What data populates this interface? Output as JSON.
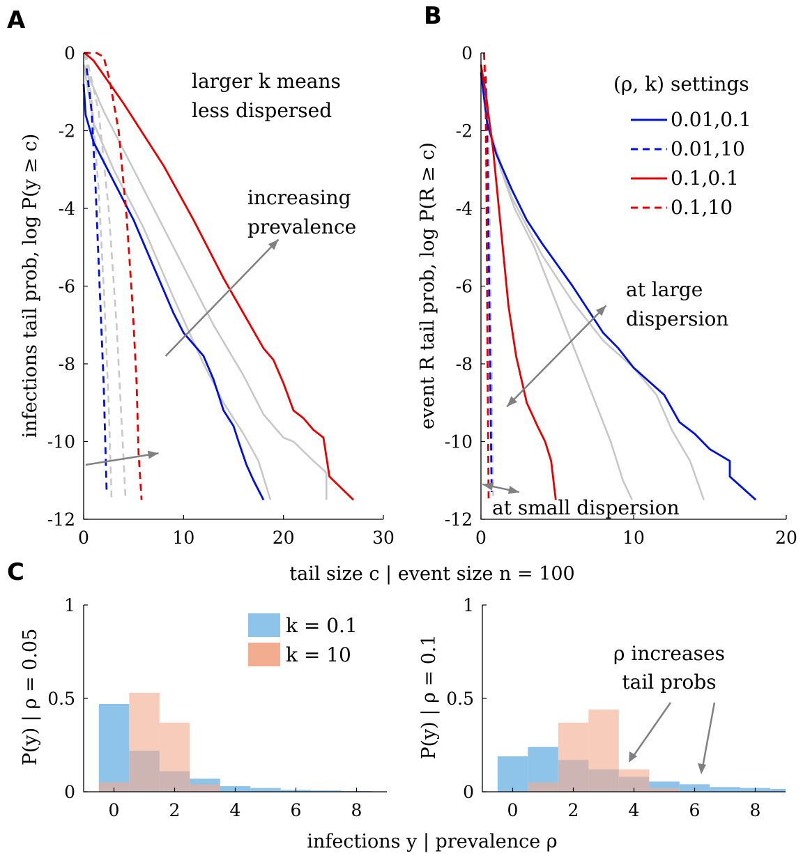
{
  "panels": {
    "A": "A",
    "B": "B",
    "C": "C"
  },
  "shared_xlabel_AB": "tail size c | event size n = 100",
  "shared_xlabel_C": "infections y |  prevalence ρ",
  "chart_data": [
    {
      "id": "A",
      "type": "line",
      "ylabel": "infections tail prob, log P(y ≥ c)",
      "xlim": [
        0,
        30
      ],
      "ylim": [
        -12,
        0
      ],
      "xticks": [
        0,
        10,
        20,
        30
      ],
      "yticks": [
        0,
        -2,
        -4,
        -6,
        -8,
        -10,
        -12
      ],
      "annotations": [
        "larger k means",
        "less dispersed",
        "increasing",
        "prevalence"
      ],
      "series": [
        {
          "style": "gray-dashed",
          "color": "#c8c8c8",
          "dash": true,
          "points": [
            [
              0.1,
              0
            ],
            [
              0.8,
              -1.2
            ],
            [
              1.5,
              -3.5
            ],
            [
              2.1,
              -6.5
            ],
            [
              2.5,
              -9
            ],
            [
              2.8,
              -11.5
            ]
          ]
        },
        {
          "style": "gray-dashed",
          "color": "#c8c8c8",
          "dash": true,
          "points": [
            [
              0.2,
              0
            ],
            [
              1.5,
              -1.5
            ],
            [
              2.5,
              -4
            ],
            [
              3.3,
              -7
            ],
            [
              3.8,
              -9.5
            ],
            [
              4.2,
              -11.5
            ]
          ]
        },
        {
          "style": "gray-solid",
          "color": "#c8c8c8",
          "dash": false,
          "points": [
            [
              0,
              -0.3
            ],
            [
              1,
              -1.8
            ],
            [
              3,
              -3
            ],
            [
              6,
              -4.5
            ],
            [
              9,
              -6.3
            ],
            [
              12,
              -8
            ],
            [
              14,
              -9
            ],
            [
              16,
              -9.8
            ],
            [
              17.5,
              -10.5
            ],
            [
              18.7,
              -11.5
            ]
          ]
        },
        {
          "style": "gray-solid",
          "color": "#c8c8c8",
          "dash": false,
          "points": [
            [
              0,
              -0.3
            ],
            [
              2,
              -1.5
            ],
            [
              5,
              -3
            ],
            [
              9,
              -5
            ],
            [
              13,
              -7
            ],
            [
              16,
              -8.3
            ],
            [
              18,
              -9.3
            ],
            [
              20,
              -9.9
            ],
            [
              21,
              -10
            ],
            [
              23,
              -10.5
            ],
            [
              24.3,
              -10.8
            ],
            [
              24.3,
              -11.5
            ]
          ]
        },
        {
          "name": "0.01,0.1",
          "color": "#0010e0",
          "dash": false,
          "points": [
            [
              0,
              -0.8
            ],
            [
              0.2,
              -1.6
            ],
            [
              1,
              -2.3
            ],
            [
              2,
              -2.8
            ],
            [
              3,
              -3.3
            ],
            [
              5,
              -4.3
            ],
            [
              7,
              -5.5
            ],
            [
              9,
              -6.7
            ],
            [
              10,
              -7.2
            ],
            [
              11,
              -7.5
            ],
            [
              12,
              -7.8
            ],
            [
              13,
              -8.4
            ],
            [
              14,
              -9.2
            ],
            [
              15,
              -9.6
            ],
            [
              15.5,
              -10
            ],
            [
              16.3,
              -10.6
            ],
            [
              17,
              -11
            ],
            [
              18,
              -11.5
            ]
          ]
        },
        {
          "name": "0.01,10",
          "color": "#0010e0",
          "dash": true,
          "points": [
            [
              0.3,
              -0.4
            ],
            [
              0.8,
              -1.5
            ],
            [
              1.2,
              -3.5
            ],
            [
              1.6,
              -6
            ],
            [
              2,
              -8.5
            ],
            [
              2.3,
              -11.3
            ]
          ]
        },
        {
          "name": "0.1,0.1",
          "color": "#e80000",
          "dash": false,
          "points": [
            [
              0.1,
              0
            ],
            [
              1,
              -0.2
            ],
            [
              4,
              -1.3
            ],
            [
              8,
              -2.9
            ],
            [
              11,
              -4.3
            ],
            [
              14,
              -5.8
            ],
            [
              16,
              -6.7
            ],
            [
              18,
              -7.6
            ],
            [
              19,
              -7.9
            ],
            [
              20,
              -8.5
            ],
            [
              21,
              -9.2
            ],
            [
              22,
              -9.4
            ],
            [
              23,
              -9.7
            ],
            [
              24,
              -9.9
            ],
            [
              24.6,
              -10.9
            ],
            [
              27,
              -11.5
            ]
          ]
        },
        {
          "name": "0.1,10",
          "color": "#e80000",
          "dash": true,
          "points": [
            [
              0,
              0
            ],
            [
              1.3,
              0
            ],
            [
              2,
              -0.1
            ],
            [
              2.6,
              -0.7
            ],
            [
              3.5,
              -2
            ],
            [
              4.3,
              -4.2
            ],
            [
              4.9,
              -6.5
            ],
            [
              5.3,
              -8.5
            ],
            [
              5.5,
              -10.3
            ],
            [
              5.8,
              -11.5
            ]
          ]
        }
      ],
      "arrows": [
        {
          "from": [
            8.2,
            -7.8
          ],
          "to": [
            19.5,
            -4.8
          ]
        },
        {
          "from": [
            0.2,
            -10.6
          ],
          "to": [
            7.5,
            -10.3
          ]
        }
      ]
    },
    {
      "id": "B",
      "type": "line",
      "ylabel": "event R tail prob, log P(R ≥ c)",
      "xlim": [
        0,
        20
      ],
      "ylim": [
        -12,
        0
      ],
      "xticks": [
        0,
        10,
        20
      ],
      "yticks": [
        0,
        -2,
        -4,
        -6,
        -8,
        -10,
        -12
      ],
      "legend_title": "(ρ, k) settings",
      "legend_position": "top-right",
      "annotations": [
        "at large",
        "dispersion",
        "at small dispersion"
      ],
      "series": [
        {
          "style": "gray-solid",
          "color": "#c8c8c8",
          "dash": false,
          "points": [
            [
              0,
              -0.6
            ],
            [
              0.5,
              -1.8
            ],
            [
              1.3,
              -3
            ],
            [
              2.2,
              -4
            ],
            [
              3.5,
              -5
            ],
            [
              5,
              -6.5
            ],
            [
              6.5,
              -8
            ],
            [
              7.5,
              -9
            ],
            [
              8.5,
              -10
            ],
            [
              9.3,
              -11
            ],
            [
              9.9,
              -11.5
            ]
          ]
        },
        {
          "style": "gray-solid",
          "color": "#c8c8c8",
          "dash": false,
          "points": [
            [
              0,
              -0.5
            ],
            [
              0.6,
              -2
            ],
            [
              2,
              -3.7
            ],
            [
              4,
              -5.2
            ],
            [
              6,
              -6.4
            ],
            [
              8,
              -7.4
            ],
            [
              10,
              -8.1
            ],
            [
              11.5,
              -8.8
            ],
            [
              12.5,
              -9.7
            ],
            [
              13.7,
              -10.5
            ],
            [
              14.6,
              -11.5
            ]
          ]
        },
        {
          "style": "gray-dashed",
          "color": "#c8c8c8",
          "dash": true,
          "points": [
            [
              0.3,
              -0.3
            ],
            [
              0.5,
              -2
            ],
            [
              0.6,
              -5
            ],
            [
              0.7,
              -8
            ],
            [
              0.8,
              -11.4
            ]
          ]
        },
        {
          "name": "0.01,0.1",
          "color": "#0010e0",
          "dash": false,
          "points": [
            [
              0,
              -0.5
            ],
            [
              0.4,
              -1.8
            ],
            [
              1,
              -2.6
            ],
            [
              2,
              -3.5
            ],
            [
              3,
              -4.3
            ],
            [
              4,
              -4.9
            ],
            [
              6,
              -6
            ],
            [
              8,
              -7.2
            ],
            [
              9,
              -7.6
            ],
            [
              10,
              -8.1
            ],
            [
              12,
              -8.8
            ],
            [
              13,
              -9.5
            ],
            [
              14,
              -9.8
            ],
            [
              15,
              -10.2
            ],
            [
              16.3,
              -10.5
            ],
            [
              16.3,
              -10.9
            ],
            [
              18,
              -11.5
            ]
          ]
        },
        {
          "name": "0.01,10",
          "color": "#0010e0",
          "dash": true,
          "points": [
            [
              0.3,
              -0.6
            ],
            [
              0.4,
              -2
            ],
            [
              0.5,
              -5
            ],
            [
              0.6,
              -8
            ],
            [
              0.7,
              -11.3
            ]
          ]
        },
        {
          "name": "0.1,0.1",
          "color": "#e80000",
          "dash": false,
          "points": [
            [
              0,
              -0.3
            ],
            [
              0.3,
              -1
            ],
            [
              0.8,
              -2.5
            ],
            [
              1.3,
              -4.5
            ],
            [
              1.8,
              -6.5
            ],
            [
              2.3,
              -7.8
            ],
            [
              3,
              -9
            ],
            [
              3.7,
              -9.6
            ],
            [
              4.2,
              -10
            ],
            [
              4.6,
              -10.5
            ],
            [
              4.9,
              -11.5
            ]
          ]
        },
        {
          "name": "0.1,10",
          "color": "#e80000",
          "dash": true,
          "points": [
            [
              0.2,
              0
            ],
            [
              0.3,
              -1
            ],
            [
              0.35,
              -3
            ],
            [
              0.4,
              -6
            ],
            [
              0.45,
              -9
            ],
            [
              0.5,
              -11.5
            ]
          ]
        }
      ],
      "arrows": [
        {
          "from": [
            5.6,
            -7.1
          ],
          "to": [
            8.2,
            -6.5
          ],
          "double": true,
          "to2": [
            1.7,
            -9.1
          ]
        },
        {
          "from": [
            0.3,
            -11.1
          ],
          "to": [
            2.5,
            -11.3
          ],
          "double": true,
          "to2": [
            0.1,
            -11.1
          ]
        }
      ]
    },
    {
      "id": "C1",
      "type": "bar",
      "ylabel": "P(y) | ρ = 0.05",
      "xlim": [
        -1,
        9
      ],
      "ylim": [
        0,
        1
      ],
      "xticks": [
        0,
        2,
        4,
        6,
        8
      ],
      "yticks": [
        0,
        0.5,
        1
      ],
      "legend_position": "top-right",
      "series": [
        {
          "name": "k = 0.1",
          "color": "#8ec3ea",
          "x": [
            0,
            1,
            2,
            3,
            4,
            5,
            6,
            7,
            8,
            9
          ],
          "values": [
            0.47,
            0.22,
            0.11,
            0.07,
            0.03,
            0.02,
            0.01,
            0.007,
            0.004,
            0.002
          ]
        },
        {
          "name": "k = 10",
          "color": "#f2ac8f",
          "x": [
            0,
            1,
            2,
            3
          ],
          "values": [
            0.05,
            0.53,
            0.37,
            0.04
          ]
        }
      ]
    },
    {
      "id": "C2",
      "type": "bar",
      "ylabel": "P(y) | ρ = 0.1",
      "xlim": [
        -1,
        9
      ],
      "ylim": [
        0,
        1
      ],
      "xticks": [
        0,
        2,
        4,
        6,
        8
      ],
      "yticks": [
        0,
        0.5,
        1
      ],
      "annotations": [
        "ρ increases",
        "tail probs"
      ],
      "series": [
        {
          "name": "k = 0.1",
          "color": "#8ec3ea",
          "x": [
            0,
            1,
            2,
            3,
            4,
            5,
            6,
            7,
            8,
            9
          ],
          "values": [
            0.19,
            0.24,
            0.17,
            0.12,
            0.08,
            0.055,
            0.04,
            0.025,
            0.02,
            0.015
          ]
        },
        {
          "name": "k = 10",
          "color": "#f2ac8f",
          "x": [
            1,
            2,
            3,
            4,
            5
          ],
          "values": [
            0.05,
            0.37,
            0.44,
            0.12,
            0.02
          ]
        }
      ]
    }
  ]
}
